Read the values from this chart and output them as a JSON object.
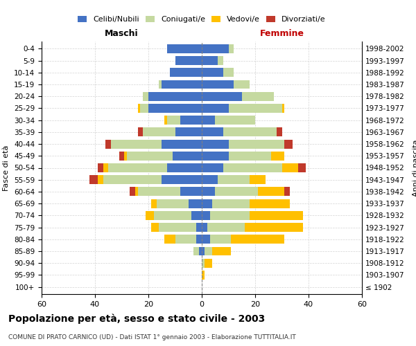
{
  "age_groups": [
    "100+",
    "95-99",
    "90-94",
    "85-89",
    "80-84",
    "75-79",
    "70-74",
    "65-69",
    "60-64",
    "55-59",
    "50-54",
    "45-49",
    "40-44",
    "35-39",
    "30-34",
    "25-29",
    "20-24",
    "15-19",
    "10-14",
    "5-9",
    "0-4"
  ],
  "birth_years": [
    "≤ 1902",
    "1903-1907",
    "1908-1912",
    "1913-1917",
    "1918-1922",
    "1923-1927",
    "1928-1932",
    "1933-1937",
    "1938-1942",
    "1943-1947",
    "1948-1952",
    "1953-1957",
    "1958-1962",
    "1963-1967",
    "1968-1972",
    "1973-1977",
    "1978-1982",
    "1983-1987",
    "1988-1992",
    "1993-1997",
    "1998-2002"
  ],
  "maschi": {
    "celibi": [
      0,
      0,
      0,
      1,
      2,
      2,
      4,
      5,
      8,
      15,
      13,
      11,
      15,
      10,
      8,
      20,
      20,
      15,
      12,
      10,
      13
    ],
    "coniugati": [
      0,
      0,
      0,
      2,
      8,
      14,
      14,
      12,
      16,
      22,
      22,
      17,
      19,
      12,
      5,
      3,
      2,
      1,
      0,
      0,
      0
    ],
    "vedovi": [
      0,
      0,
      0,
      0,
      4,
      3,
      3,
      2,
      1,
      2,
      2,
      1,
      0,
      0,
      1,
      1,
      0,
      0,
      0,
      0,
      0
    ],
    "divorziati": [
      0,
      0,
      0,
      0,
      0,
      0,
      0,
      0,
      2,
      3,
      2,
      2,
      2,
      2,
      0,
      0,
      0,
      0,
      0,
      0,
      0
    ]
  },
  "femmine": {
    "nubili": [
      0,
      0,
      0,
      1,
      3,
      2,
      3,
      4,
      5,
      6,
      8,
      10,
      10,
      8,
      5,
      10,
      15,
      12,
      8,
      6,
      10
    ],
    "coniugate": [
      0,
      0,
      1,
      3,
      8,
      14,
      15,
      14,
      16,
      12,
      22,
      16,
      21,
      20,
      15,
      20,
      12,
      6,
      4,
      2,
      2
    ],
    "vedove": [
      0,
      1,
      3,
      7,
      20,
      22,
      20,
      15,
      10,
      6,
      6,
      5,
      0,
      0,
      0,
      1,
      0,
      0,
      0,
      0,
      0
    ],
    "divorziate": [
      0,
      0,
      0,
      0,
      0,
      0,
      0,
      0,
      2,
      0,
      3,
      0,
      3,
      2,
      0,
      0,
      0,
      0,
      0,
      0,
      0
    ]
  },
  "color_celibi": "#4472c4",
  "color_coniugati": "#c5d9a0",
  "color_vedovi": "#ffc000",
  "color_divorziati": "#c0392b",
  "xlim": 60,
  "title": "Popolazione per età, sesso e stato civile - 2003",
  "subtitle": "COMUNE DI PRATO CARNICO (UD) - Dati ISTAT 1° gennaio 2003 - Elaborazione TUTTITALIA.IT",
  "ylabel_left": "Fasce di età",
  "ylabel_right": "Anni di nascita",
  "legend_labels": [
    "Celibi/Nubili",
    "Coniugati/e",
    "Vedovi/e",
    "Divorziati/e"
  ],
  "maschi_label": "Maschi",
  "femmine_label": "Femmine"
}
